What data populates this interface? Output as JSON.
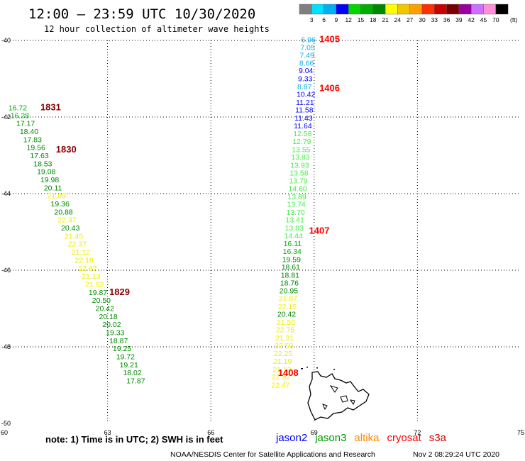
{
  "header": {
    "title": "12:00 – 23:59 UTC 10/30/2020",
    "subtitle": "12 hour collection of altimeter wave heights"
  },
  "colorbar": {
    "unit": "(ft)",
    "labels": [
      "3",
      "6",
      "9",
      "12",
      "15",
      "18",
      "21",
      "24",
      "27",
      "30",
      "33",
      "36",
      "39",
      "42",
      "45",
      "70"
    ],
    "colors": [
      "#7f7f7f",
      "#00e0ff",
      "#00b0f0",
      "#0000ff",
      "#00d800",
      "#00b000",
      "#008800",
      "#ffff00",
      "#f0c800",
      "#ffa000",
      "#ff3000",
      "#cc0000",
      "#7a0000",
      "#9a00a0",
      "#cc70ff",
      "#ff90d8",
      "#000000"
    ]
  },
  "footer": {
    "note": "note:  1) Time is in UTC; 2) SWH is in feet",
    "credit": "NOAA/NESDIS Center for Satellite Applications and Research",
    "timestamp": "Nov  2 08:29:24 UTC 2020",
    "satellites": [
      {
        "name": "jason2",
        "color": "#0000ff"
      },
      {
        "name": "jason3",
        "color": "#009900"
      },
      {
        "name": "altika",
        "color": "#ff8800"
      },
      {
        "name": "cryosat",
        "color": "#ff0000"
      },
      {
        "name": "s3a",
        "color": "#cc0000"
      }
    ]
  },
  "chart_data": {
    "type": "scatter",
    "title": "12:00 – 23:59 UTC 10/30/2020",
    "subtitle": "12 hour collection of altimeter wave heights",
    "xlim": [
      60,
      75
    ],
    "ylim": [
      -50,
      -40
    ],
    "x_ticks": [
      "60",
      "63",
      "66",
      "69",
      "72",
      "75"
    ],
    "y_ticks": [
      "-40",
      "-42",
      "-44",
      "-46",
      "-48",
      "-50"
    ],
    "grid": true,
    "time_labels": [
      {
        "text": "1405",
        "lon": 69.15,
        "lat": -39.95,
        "color": "#ff0000"
      },
      {
        "text": "1406",
        "lon": 69.15,
        "lat": -41.23,
        "color": "#ff0000"
      },
      {
        "text": "1407",
        "lon": 68.85,
        "lat": -44.95,
        "color": "#ff0000"
      },
      {
        "text": "1408",
        "lon": 67.95,
        "lat": -48.67,
        "color": "#ff0000"
      },
      {
        "text": "1831",
        "lon": 61.05,
        "lat": -41.73,
        "color": "#880000"
      },
      {
        "text": "1830",
        "lon": 61.5,
        "lat": -42.83,
        "color": "#880000"
      },
      {
        "text": "1829",
        "lon": 63.05,
        "lat": -46.56,
        "color": "#880000"
      }
    ],
    "series": [
      {
        "name": "1405-1408",
        "points": [
          {
            "lon": 68.62,
            "lat": -39.97,
            "swh": "6.96",
            "color": "#00b0f0"
          },
          {
            "lon": 68.6,
            "lat": -40.18,
            "swh": "7.05",
            "color": "#00b0f0"
          },
          {
            "lon": 68.58,
            "lat": -40.38,
            "swh": "7.49",
            "color": "#00b0f0"
          },
          {
            "lon": 68.57,
            "lat": -40.58,
            "swh": "8.66",
            "color": "#00b0f0"
          },
          {
            "lon": 68.55,
            "lat": -40.78,
            "swh": "9.04",
            "color": "#0000ff"
          },
          {
            "lon": 68.53,
            "lat": -40.99,
            "swh": "9.33",
            "color": "#0000ff"
          },
          {
            "lon": 68.51,
            "lat": -41.2,
            "swh": "8.87",
            "color": "#00b0f0"
          },
          {
            "lon": 68.49,
            "lat": -41.4,
            "swh": "10.42",
            "color": "#0000ff"
          },
          {
            "lon": 68.47,
            "lat": -41.61,
            "swh": "11.21",
            "color": "#0000ff"
          },
          {
            "lon": 68.45,
            "lat": -41.81,
            "swh": "11.58",
            "color": "#0000ff"
          },
          {
            "lon": 68.43,
            "lat": -42.02,
            "swh": "11.43",
            "color": "#0000ff"
          },
          {
            "lon": 68.41,
            "lat": -42.22,
            "swh": "11.64",
            "color": "#0000ff"
          },
          {
            "lon": 68.39,
            "lat": -42.43,
            "swh": "12.58",
            "color": "#44ee44"
          },
          {
            "lon": 68.37,
            "lat": -42.63,
            "swh": "12.79",
            "color": "#44ee44"
          },
          {
            "lon": 68.35,
            "lat": -42.84,
            "swh": "13.55",
            "color": "#44ee44"
          },
          {
            "lon": 68.33,
            "lat": -43.04,
            "swh": "13.83",
            "color": "#44ee44"
          },
          {
            "lon": 68.31,
            "lat": -43.25,
            "swh": "13.93",
            "color": "#44ee44"
          },
          {
            "lon": 68.29,
            "lat": -43.45,
            "swh": "13.58",
            "color": "#44ee44"
          },
          {
            "lon": 68.27,
            "lat": -43.66,
            "swh": "13.79",
            "color": "#44ee44"
          },
          {
            "lon": 68.25,
            "lat": -43.86,
            "swh": "14.60",
            "color": "#44ee44"
          },
          {
            "lon": 68.23,
            "lat": -44.07,
            "swh": "13.89",
            "color": "#44ee44"
          },
          {
            "lon": 68.21,
            "lat": -44.27,
            "swh": "13.74",
            "color": "#44ee44"
          },
          {
            "lon": 68.19,
            "lat": -44.48,
            "swh": "13.70",
            "color": "#44ee44"
          },
          {
            "lon": 68.17,
            "lat": -44.68,
            "swh": "13.41",
            "color": "#44ee44"
          },
          {
            "lon": 68.15,
            "lat": -44.89,
            "swh": "13.83",
            "color": "#44ee44"
          },
          {
            "lon": 68.13,
            "lat": -45.09,
            "swh": "14.44",
            "color": "#44ee44"
          },
          {
            "lon": 68.11,
            "lat": -45.3,
            "swh": "16.11",
            "color": "#00b000"
          },
          {
            "lon": 68.09,
            "lat": -45.5,
            "swh": "16.34",
            "color": "#00b000"
          },
          {
            "lon": 68.07,
            "lat": -45.71,
            "swh": "19.59",
            "color": "#008800"
          },
          {
            "lon": 68.05,
            "lat": -45.91,
            "swh": "18.61",
            "color": "#008800"
          },
          {
            "lon": 68.03,
            "lat": -46.12,
            "swh": "18.81",
            "color": "#008800"
          },
          {
            "lon": 68.01,
            "lat": -46.32,
            "swh": "18.76",
            "color": "#008800"
          },
          {
            "lon": 67.99,
            "lat": -46.53,
            "swh": "20.95",
            "color": "#008800"
          },
          {
            "lon": 67.97,
            "lat": -46.73,
            "swh": "21.87",
            "color": "#eeee00"
          },
          {
            "lon": 67.95,
            "lat": -46.94,
            "swh": "22.15",
            "color": "#eeee00"
          },
          {
            "lon": 67.93,
            "lat": -47.14,
            "swh": "20.42",
            "color": "#008800"
          },
          {
            "lon": 67.91,
            "lat": -47.35,
            "swh": "21.50",
            "color": "#eeee00"
          },
          {
            "lon": 67.89,
            "lat": -47.55,
            "swh": "22.75",
            "color": "#eeee00"
          },
          {
            "lon": 67.87,
            "lat": -47.76,
            "swh": "21.31",
            "color": "#eeee00"
          },
          {
            "lon": 67.85,
            "lat": -47.96,
            "swh": "22.59",
            "color": "#eeee00"
          },
          {
            "lon": 67.83,
            "lat": -48.17,
            "swh": "22.25",
            "color": "#eeee00"
          },
          {
            "lon": 67.81,
            "lat": -48.37,
            "swh": "21.19",
            "color": "#eeee00"
          },
          {
            "lon": 67.79,
            "lat": -48.58,
            "swh": "21.13",
            "color": "#eeee00"
          },
          {
            "lon": 67.77,
            "lat": -48.78,
            "swh": "22.62",
            "color": "#eeee00"
          },
          {
            "lon": 67.75,
            "lat": -48.99,
            "swh": "22.47",
            "color": "#eeee00"
          }
        ]
      },
      {
        "name": "1829-1831",
        "points": [
          {
            "lon": 60.12,
            "lat": -41.75,
            "swh": "16.72",
            "color": "#00b000"
          },
          {
            "lon": 60.18,
            "lat": -41.95,
            "swh": "16.28",
            "color": "#00b000"
          },
          {
            "lon": 60.35,
            "lat": -42.16,
            "swh": "17.17",
            "color": "#008800"
          },
          {
            "lon": 60.45,
            "lat": -42.37,
            "swh": "18.40",
            "color": "#008800"
          },
          {
            "lon": 60.55,
            "lat": -42.58,
            "swh": "17.83",
            "color": "#008800"
          },
          {
            "lon": 60.65,
            "lat": -42.79,
            "swh": "19.56",
            "color": "#008800"
          },
          {
            "lon": 60.75,
            "lat": -43.0,
            "swh": "17.63",
            "color": "#008800"
          },
          {
            "lon": 60.85,
            "lat": -43.21,
            "swh": "18.53",
            "color": "#008800"
          },
          {
            "lon": 60.95,
            "lat": -43.42,
            "swh": "19.08",
            "color": "#008800"
          },
          {
            "lon": 61.05,
            "lat": -43.63,
            "swh": "19.98",
            "color": "#008800"
          },
          {
            "lon": 61.15,
            "lat": -43.84,
            "swh": "20.11",
            "color": "#008800"
          },
          {
            "lon": 61.25,
            "lat": -44.05,
            "swh": "21.09",
            "color": "#eeee00"
          },
          {
            "lon": 61.35,
            "lat": -44.26,
            "swh": "19.36",
            "color": "#008800"
          },
          {
            "lon": 61.45,
            "lat": -44.47,
            "swh": "20.88",
            "color": "#008800"
          },
          {
            "lon": 61.55,
            "lat": -44.68,
            "swh": "22.37",
            "color": "#eeee00"
          },
          {
            "lon": 61.65,
            "lat": -44.89,
            "swh": "20.43",
            "color": "#008800"
          },
          {
            "lon": 61.75,
            "lat": -45.1,
            "swh": "21.45",
            "color": "#eeee00"
          },
          {
            "lon": 61.85,
            "lat": -45.31,
            "swh": "22.37",
            "color": "#eeee00"
          },
          {
            "lon": 61.95,
            "lat": -45.52,
            "swh": "21.12",
            "color": "#eeee00"
          },
          {
            "lon": 62.05,
            "lat": -45.73,
            "swh": "22.16",
            "color": "#eeee00"
          },
          {
            "lon": 62.15,
            "lat": -45.94,
            "swh": "22.67",
            "color": "#eeee00"
          },
          {
            "lon": 62.25,
            "lat": -46.15,
            "swh": "21.13",
            "color": "#eeee00"
          },
          {
            "lon": 62.35,
            "lat": -46.36,
            "swh": "21.52",
            "color": "#eeee00"
          },
          {
            "lon": 62.45,
            "lat": -46.57,
            "swh": "19.87",
            "color": "#008800"
          },
          {
            "lon": 62.55,
            "lat": -46.78,
            "swh": "20.50",
            "color": "#008800"
          },
          {
            "lon": 62.65,
            "lat": -46.99,
            "swh": "20.42",
            "color": "#008800"
          },
          {
            "lon": 62.75,
            "lat": -47.2,
            "swh": "20.18",
            "color": "#008800"
          },
          {
            "lon": 62.85,
            "lat": -47.41,
            "swh": "20.02",
            "color": "#008800"
          },
          {
            "lon": 62.95,
            "lat": -47.62,
            "swh": "19.33",
            "color": "#008800"
          },
          {
            "lon": 63.05,
            "lat": -47.83,
            "swh": "18.87",
            "color": "#008800"
          },
          {
            "lon": 63.15,
            "lat": -48.04,
            "swh": "19.25",
            "color": "#008800"
          },
          {
            "lon": 63.25,
            "lat": -48.25,
            "swh": "19.72",
            "color": "#008800"
          },
          {
            "lon": 63.35,
            "lat": -48.46,
            "swh": "19.21",
            "color": "#008800"
          },
          {
            "lon": 63.45,
            "lat": -48.67,
            "swh": "18.02",
            "color": "#008800"
          },
          {
            "lon": 63.55,
            "lat": -48.88,
            "swh": "17.87",
            "color": "#008800"
          }
        ]
      }
    ]
  }
}
